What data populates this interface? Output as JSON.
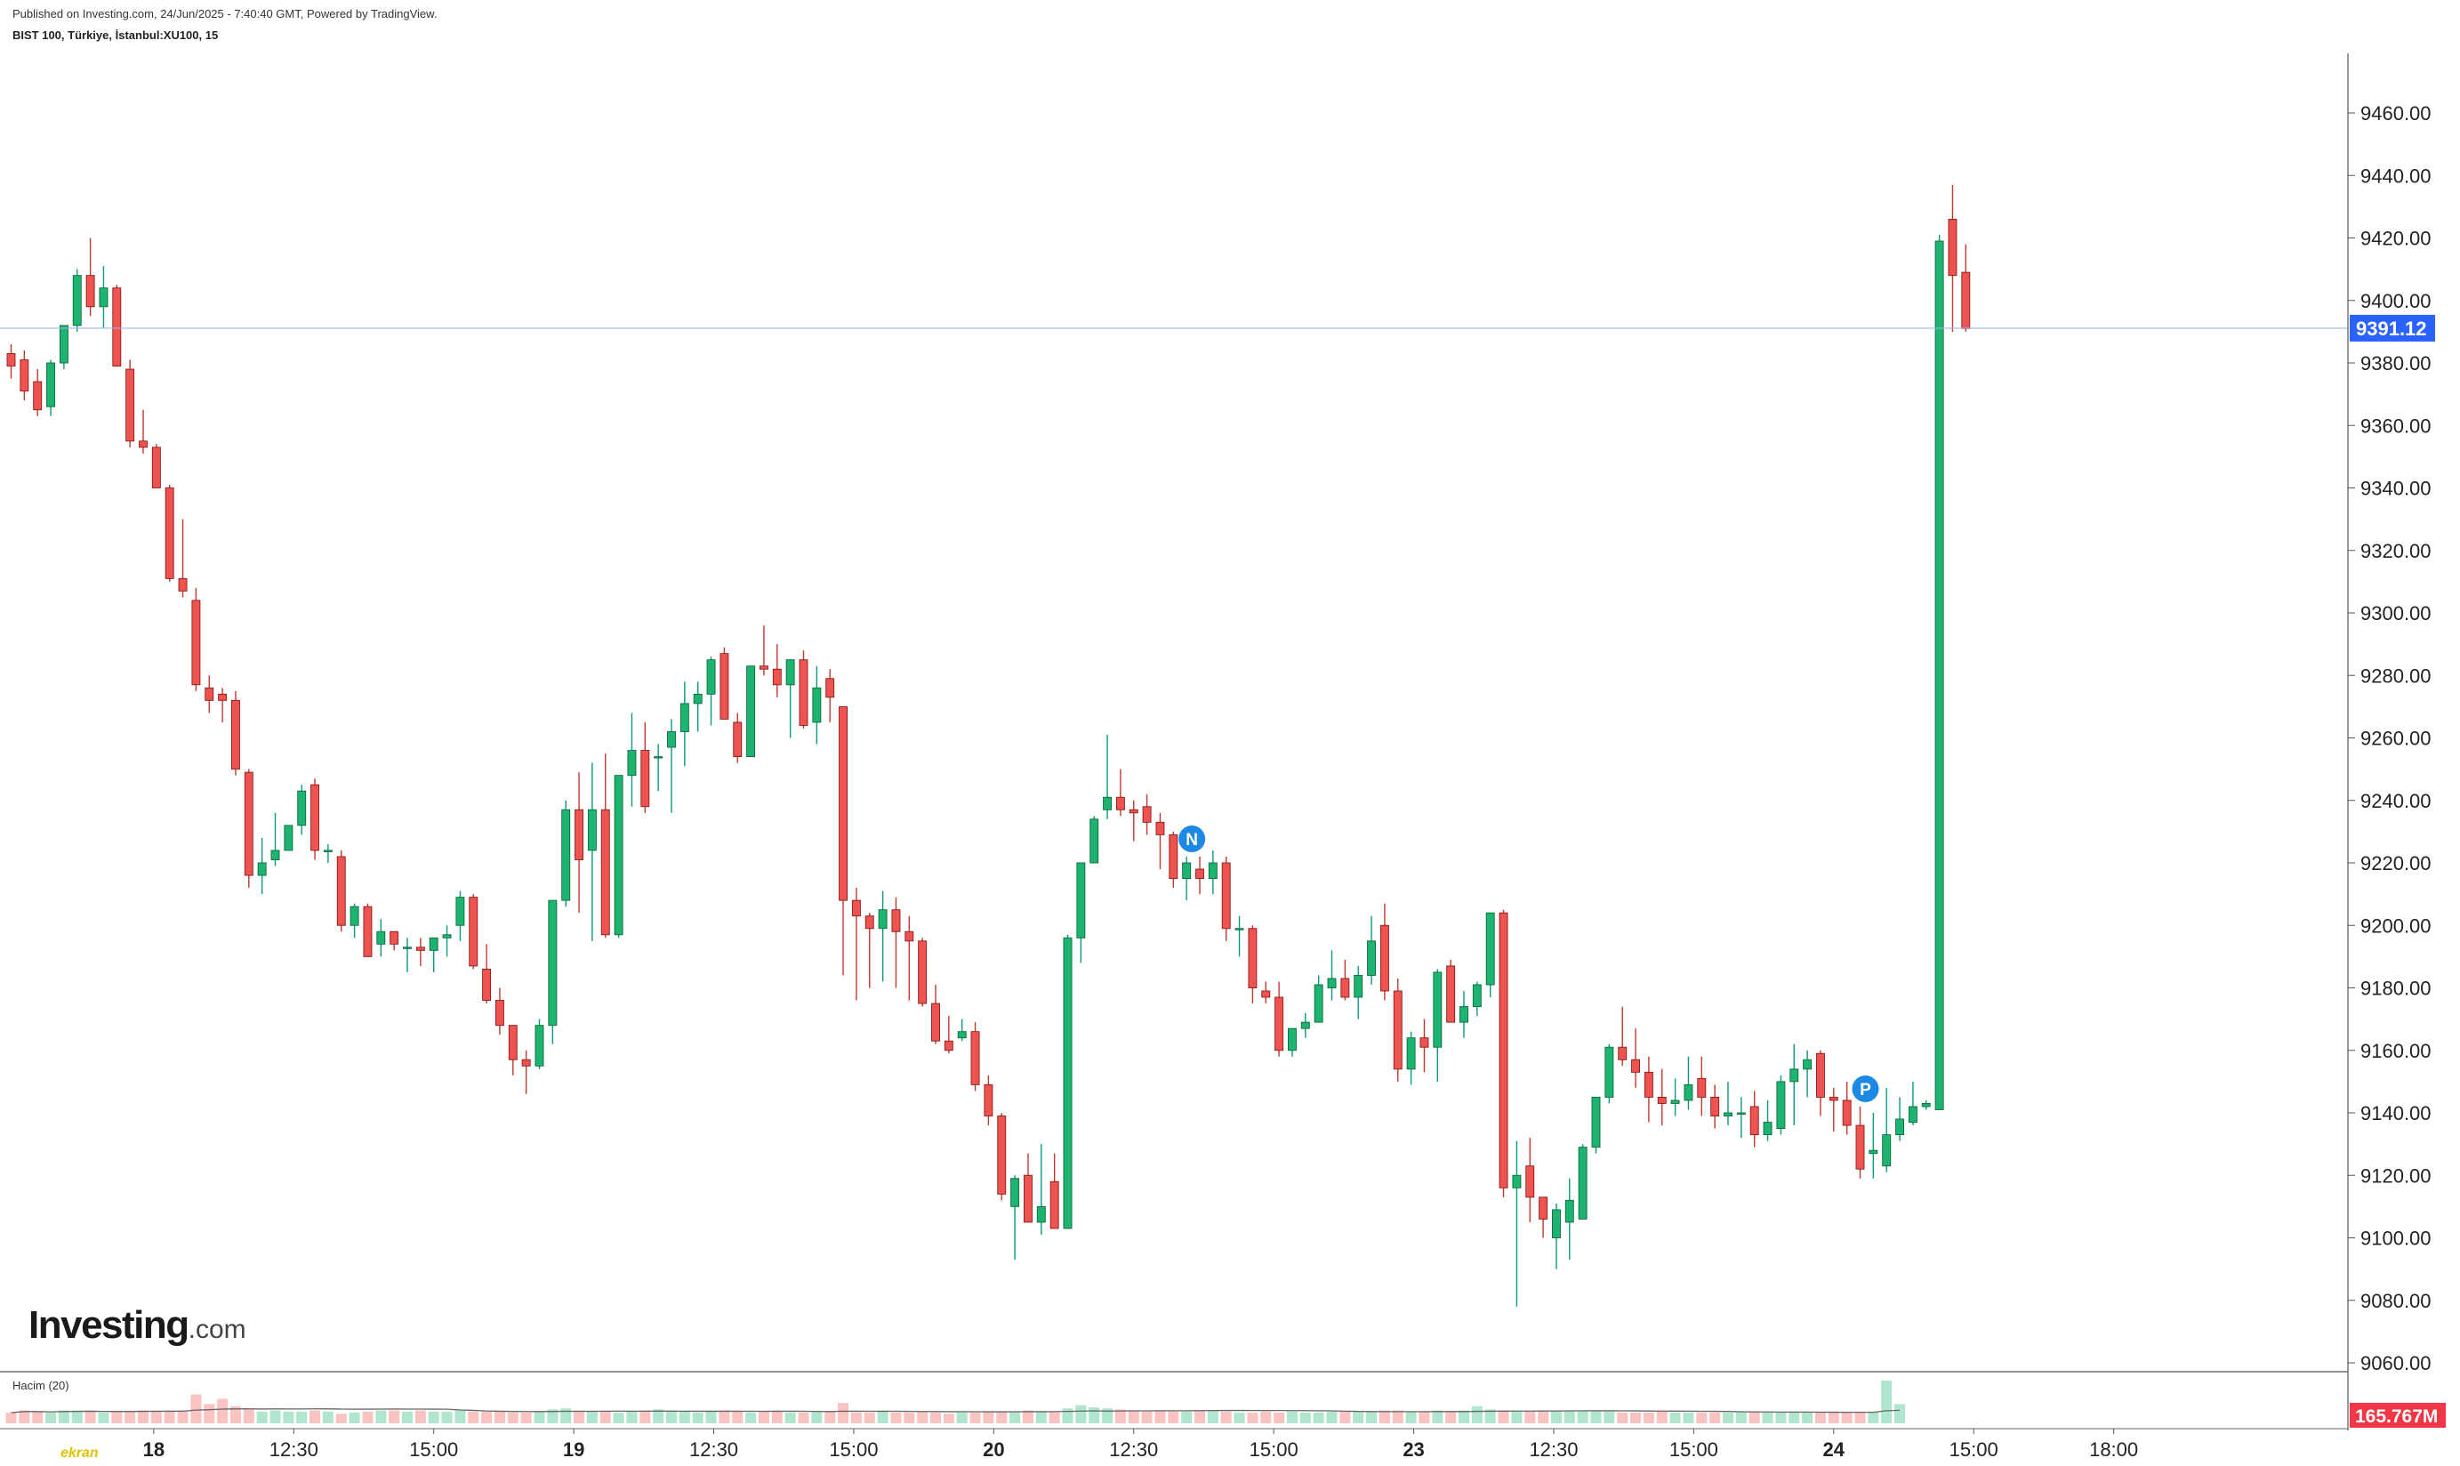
{
  "header": {
    "published": "Published on Investing.com, 24/Jun/2025 - 7:40:40 GMT, Powered by TradingView.",
    "symbol": "BIST 100, Türkiye, İstanbul:XU100, 15"
  },
  "logo": {
    "main": "Investing",
    "suffix": ".com"
  },
  "watermark": "ekran",
  "volume_panel": {
    "label": "Hacim (20)",
    "last_value": "165.767M"
  },
  "colors": {
    "up": "#089981",
    "up_fill": "#1db472",
    "down": "#c0392b",
    "down_fill": "#ef5350",
    "price_tag": "#2962ff",
    "volume_tag": "#f23645"
  },
  "chart_data": {
    "type": "candlestick",
    "title": "BIST 100, Türkiye, İstanbul:XU100, 15",
    "interval": "15m",
    "yaxis": {
      "ticks": [
        9060,
        9080,
        9100,
        9120,
        9140,
        9160,
        9180,
        9200,
        9220,
        9240,
        9260,
        9280,
        9300,
        9320,
        9340,
        9360,
        9380,
        9400,
        9420,
        9440,
        9460
      ],
      "range": [
        9053,
        9474
      ]
    },
    "last_price": 9391.12,
    "last_price_label": "9391.12",
    "xaxis": {
      "labels": [
        "18",
        "12:30",
        "15:00",
        "19",
        "12:30",
        "15:00",
        "20",
        "12:30",
        "15:00",
        "23",
        "12:30",
        "15:00",
        "24",
        "15:00",
        "18:00"
      ],
      "label_positions": [
        10.8,
        21.4,
        32.0,
        42.6,
        53.2,
        63.8,
        74.4,
        85.0,
        95.6,
        106.2,
        116.8,
        127.4,
        138.0,
        148.6,
        159.2
      ]
    },
    "markers": [
      {
        "label": "N",
        "at_bar": 89
      },
      {
        "label": "P",
        "at_bar": 140
      }
    ],
    "candles": [
      [
        9383,
        9386,
        9375,
        9379
      ],
      [
        9381,
        9384,
        9368,
        9371
      ],
      [
        9374,
        9378,
        9363,
        9365
      ],
      [
        9366,
        9381,
        9363,
        9380
      ],
      [
        9380,
        9392,
        9378,
        9392
      ],
      [
        9392,
        9410,
        9390,
        9408
      ],
      [
        9408,
        9420,
        9395,
        9398
      ],
      [
        9398,
        9411,
        9391,
        9404
      ],
      [
        9404,
        9405,
        9380,
        9379
      ],
      [
        9378,
        9381,
        9353,
        9355
      ],
      [
        9355,
        9365,
        9351,
        9353
      ],
      [
        9353,
        9354,
        9340,
        9340
      ],
      [
        9340,
        9341,
        9310,
        9311
      ],
      [
        9311,
        9330,
        9305,
        9307
      ],
      [
        9304,
        9308,
        9275,
        9277
      ],
      [
        9276,
        9280,
        9268,
        9272
      ],
      [
        9274,
        9276,
        9265,
        9272
      ],
      [
        9272,
        9275,
        9248,
        9250
      ],
      [
        9249,
        9250,
        9212,
        9216
      ],
      [
        9216,
        9228,
        9210,
        9220
      ],
      [
        9221,
        9236,
        9219,
        9224
      ],
      [
        9224,
        9232,
        9224,
        9232
      ],
      [
        9232,
        9245,
        9229,
        9243
      ],
      [
        9245,
        9247,
        9221,
        9224
      ],
      [
        9224,
        9226,
        9220,
        9224
      ],
      [
        9222,
        9224,
        9198,
        9200
      ],
      [
        9200,
        9207,
        9196,
        9206
      ],
      [
        9206,
        9207,
        9190,
        9190
      ],
      [
        9194,
        9202,
        9190,
        9198
      ],
      [
        9198,
        9198,
        9192,
        9194
      ],
      [
        9193,
        9196,
        9185,
        9193
      ],
      [
        9193,
        9196,
        9187,
        9192
      ],
      [
        9192,
        9196,
        9185,
        9196
      ],
      [
        9196,
        9200,
        9190,
        9197
      ],
      [
        9200,
        9211,
        9195,
        9209
      ],
      [
        9209,
        9210,
        9186,
        9187
      ],
      [
        9186,
        9194,
        9175,
        9176
      ],
      [
        9176,
        9180,
        9165,
        9168
      ],
      [
        9168,
        9168,
        9152,
        9157
      ],
      [
        9157,
        9160,
        9146,
        9155
      ],
      [
        9155,
        9170,
        9154,
        9168
      ],
      [
        9168,
        9206,
        9162,
        9208
      ],
      [
        9208,
        9240,
        9206,
        9237
      ],
      [
        9237,
        9249,
        9204,
        9221
      ],
      [
        9224,
        9252,
        9195,
        9237
      ],
      [
        9237,
        9255,
        9196,
        9197
      ],
      [
        9197,
        9245,
        9196,
        9248
      ],
      [
        9248,
        9268,
        9238,
        9256
      ],
      [
        9256,
        9265,
        9236,
        9238
      ],
      [
        9254,
        9258,
        9243,
        9254
      ],
      [
        9257,
        9266,
        9236,
        9262
      ],
      [
        9262,
        9278,
        9251,
        9271
      ],
      [
        9271,
        9278,
        9262,
        9274
      ],
      [
        9274,
        9286,
        9264,
        9285
      ],
      [
        9287,
        9289,
        9266,
        9266
      ],
      [
        9265,
        9268,
        9252,
        9254
      ],
      [
        9254,
        9280,
        9254,
        9283
      ],
      [
        9283,
        9296,
        9280,
        9282
      ],
      [
        9282,
        9290,
        9273,
        9277
      ],
      [
        9277,
        9285,
        9260,
        9285
      ],
      [
        9285,
        9288,
        9263,
        9264
      ],
      [
        9265,
        9283,
        9258,
        9276
      ],
      [
        9279,
        9282,
        9265,
        9273
      ],
      [
        9270,
        9270,
        9184,
        9208
      ],
      [
        9208,
        9212,
        9176,
        9203
      ],
      [
        9203,
        9204,
        9180,
        9199
      ],
      [
        9199,
        9211,
        9182,
        9205
      ],
      [
        9205,
        9209,
        9180,
        9198
      ],
      [
        9198,
        9203,
        9176,
        9195
      ],
      [
        9195,
        9196,
        9174,
        9175
      ],
      [
        9175,
        9181,
        9162,
        9163
      ],
      [
        9163,
        9171,
        9159,
        9160
      ],
      [
        9164,
        9170,
        9163,
        9166
      ],
      [
        9166,
        9169,
        9147,
        9149
      ],
      [
        9149,
        9152,
        9136,
        9139
      ],
      [
        9139,
        9140,
        9112,
        9114
      ],
      [
        9110,
        9120,
        9093,
        9119
      ],
      [
        9120,
        9127,
        9105,
        9105
      ],
      [
        9105,
        9130,
        9101,
        9110
      ],
      [
        9118,
        9127,
        9103,
        9103
      ],
      [
        9103,
        9197,
        9103,
        9196
      ],
      [
        9196,
        9220,
        9188,
        9220
      ],
      [
        9220,
        9235,
        9220,
        9234
      ],
      [
        9237,
        9261,
        9234,
        9241
      ],
      [
        9241,
        9250,
        9235,
        9237
      ],
      [
        9237,
        9240,
        9227,
        9236
      ],
      [
        9238,
        9242,
        9229,
        9233
      ],
      [
        9233,
        9236,
        9218,
        9229
      ],
      [
        9229,
        9230,
        9212,
        9215
      ],
      [
        9215,
        9222,
        9208,
        9220
      ],
      [
        9218,
        9222,
        9210,
        9215
      ],
      [
        9215,
        9224,
        9210,
        9220
      ],
      [
        9220,
        9222,
        9195,
        9199
      ],
      [
        9199,
        9203,
        9190,
        9199
      ],
      [
        9199,
        9200,
        9175,
        9180
      ],
      [
        9179,
        9182,
        9175,
        9177
      ],
      [
        9177,
        9182,
        9158,
        9160
      ],
      [
        9160,
        9167,
        9158,
        9167
      ],
      [
        9167,
        9172,
        9164,
        9169
      ],
      [
        9169,
        9184,
        9169,
        9181
      ],
      [
        9180,
        9192,
        9176,
        9183
      ],
      [
        9183,
        9189,
        9176,
        9177
      ],
      [
        9177,
        9187,
        9170,
        9184
      ],
      [
        9184,
        9203,
        9181,
        9195
      ],
      [
        9200,
        9207,
        9176,
        9179
      ],
      [
        9179,
        9183,
        9150,
        9154
      ],
      [
        9154,
        9166,
        9149,
        9164
      ],
      [
        9164,
        9170,
        9153,
        9161
      ],
      [
        9161,
        9186,
        9150,
        9185
      ],
      [
        9187,
        9189,
        9169,
        9169
      ],
      [
        9169,
        9179,
        9164,
        9174
      ],
      [
        9174,
        9182,
        9171,
        9181
      ],
      [
        9181,
        9204,
        9177,
        9204
      ],
      [
        9204,
        9205,
        9113,
        9116
      ],
      [
        9116,
        9131,
        9078,
        9120
      ],
      [
        9123,
        9132,
        9105,
        9113
      ],
      [
        9113,
        9113,
        9100,
        9106
      ],
      [
        9100,
        9111,
        9090,
        9109
      ],
      [
        9105,
        9119,
        9093,
        9112
      ],
      [
        9106,
        9130,
        9106,
        9129
      ],
      [
        9129,
        9145,
        9127,
        9145
      ],
      [
        9145,
        9162,
        9143,
        9161
      ],
      [
        9161,
        9174,
        9155,
        9157
      ],
      [
        9157,
        9167,
        9148,
        9153
      ],
      [
        9153,
        9158,
        9137,
        9145
      ],
      [
        9145,
        9154,
        9136,
        9143
      ],
      [
        9143,
        9151,
        9139,
        9144
      ],
      [
        9144,
        9158,
        9141,
        9149
      ],
      [
        9151,
        9158,
        9139,
        9145
      ],
      [
        9145,
        9149,
        9135,
        9139
      ],
      [
        9139,
        9150,
        9136,
        9140
      ],
      [
        9140,
        9145,
        9132,
        9140
      ],
      [
        9142,
        9147,
        9129,
        9133
      ],
      [
        9133,
        9144,
        9131,
        9137
      ],
      [
        9135,
        9152,
        9133,
        9150
      ],
      [
        9150,
        9162,
        9136,
        9154
      ],
      [
        9154,
        9160,
        9145,
        9157
      ],
      [
        9159,
        9160,
        9139,
        9145
      ],
      [
        9145,
        9148,
        9134,
        9144
      ],
      [
        9144,
        9150,
        9133,
        9136
      ],
      [
        9136,
        9142,
        9119,
        9122
      ],
      [
        9127,
        9140,
        9119,
        9128
      ],
      [
        9123,
        9148,
        9121,
        9133
      ],
      [
        9133,
        9145,
        9131,
        9138
      ],
      [
        9137,
        9150,
        9136,
        9142
      ],
      [
        9142,
        9144,
        9141,
        9143
      ],
      [
        9141,
        9421,
        9141,
        9419
      ],
      [
        9426,
        9437,
        9390,
        9408
      ],
      [
        9409,
        9418,
        9390,
        9391
      ]
    ],
    "volume": [
      0.5,
      0.6,
      0.55,
      0.5,
      0.6,
      0.6,
      0.6,
      0.5,
      0.55,
      0.55,
      0.6,
      0.6,
      0.6,
      0.6,
      1.35,
      0.9,
      1.15,
      0.8,
      0.7,
      0.55,
      0.6,
      0.55,
      0.55,
      0.6,
      0.55,
      0.45,
      0.5,
      0.55,
      0.6,
      0.6,
      0.55,
      0.6,
      0.55,
      0.55,
      0.6,
      0.55,
      0.55,
      0.55,
      0.5,
      0.5,
      0.55,
      0.65,
      0.7,
      0.6,
      0.55,
      0.55,
      0.5,
      0.55,
      0.6,
      0.65,
      0.55,
      0.55,
      0.5,
      0.55,
      0.6,
      0.55,
      0.5,
      0.55,
      0.55,
      0.5,
      0.5,
      0.55,
      0.55,
      0.95,
      0.5,
      0.5,
      0.55,
      0.5,
      0.5,
      0.55,
      0.5,
      0.45,
      0.5,
      0.5,
      0.55,
      0.55,
      0.55,
      0.6,
      0.55,
      0.55,
      0.7,
      0.85,
      0.75,
      0.7,
      0.65,
      0.6,
      0.55,
      0.55,
      0.55,
      0.55,
      0.6,
      0.6,
      0.55,
      0.5,
      0.5,
      0.55,
      0.5,
      0.55,
      0.5,
      0.5,
      0.55,
      0.55,
      0.55,
      0.55,
      0.6,
      0.6,
      0.55,
      0.55,
      0.6,
      0.55,
      0.6,
      0.8,
      0.65,
      0.6,
      0.55,
      0.55,
      0.55,
      0.6,
      0.6,
      0.55,
      0.55,
      0.55,
      0.5,
      0.5,
      0.5,
      0.55,
      0.5,
      0.5,
      0.5,
      0.5,
      0.5,
      0.5,
      0.55,
      0.5,
      0.5,
      0.55,
      0.5,
      0.5,
      0.55,
      0.5,
      0.55,
      0.55,
      2.0,
      0.9
    ]
  }
}
